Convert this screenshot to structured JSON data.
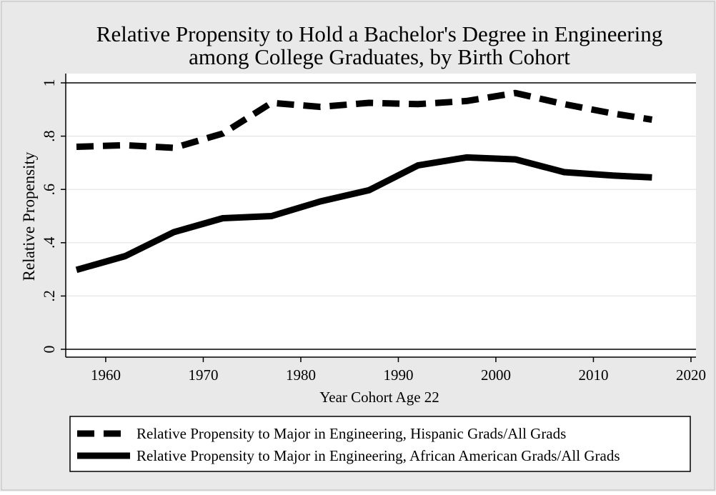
{
  "chart_data": {
    "type": "line",
    "title": "Relative Propensity to Hold a Bachelor's Degree in Engineering",
    "subtitle": "among College Graduates, by Birth Cohort",
    "xlabel": "Year Cohort Age 22",
    "ylabel": "Relative Propensity",
    "xlim": [
      1957,
      2020
    ],
    "ylim": [
      0,
      1
    ],
    "xticks": [
      1960,
      1970,
      1980,
      1990,
      2000,
      2010,
      2020
    ],
    "xtick_labels": [
      "1960",
      "1970",
      "1980",
      "1990",
      "2000",
      "2010",
      "2020"
    ],
    "yticks": [
      0,
      0.2,
      0.4,
      0.6,
      0.8,
      1
    ],
    "ytick_labels": [
      "0",
      ".2",
      ".4",
      ".6",
      ".8",
      "1"
    ],
    "grid": true,
    "legend_position": "bottom",
    "series": [
      {
        "name": "Relative Propensity to Major in Engineering, Hispanic Grads/All Grads",
        "style": "dashed",
        "color": "#000000",
        "x": [
          1957,
          1962,
          1967,
          1972,
          1977,
          1982,
          1987,
          1992,
          1997,
          2002,
          2007,
          2012,
          2016
        ],
        "values": [
          0.76,
          0.766,
          0.756,
          0.81,
          0.925,
          0.91,
          0.925,
          0.92,
          0.932,
          0.962,
          0.92,
          0.885,
          0.862
        ]
      },
      {
        "name": "Relative Propensity to Major in Engineering, African American Grads/All Grads",
        "style": "solid",
        "color": "#000000",
        "x": [
          1957,
          1962,
          1967,
          1972,
          1977,
          1982,
          1987,
          1992,
          1997,
          2002,
          2007,
          2012,
          2016
        ],
        "values": [
          0.298,
          0.35,
          0.44,
          0.492,
          0.5,
          0.555,
          0.597,
          0.69,
          0.72,
          0.713,
          0.665,
          0.652,
          0.645
        ]
      }
    ]
  }
}
